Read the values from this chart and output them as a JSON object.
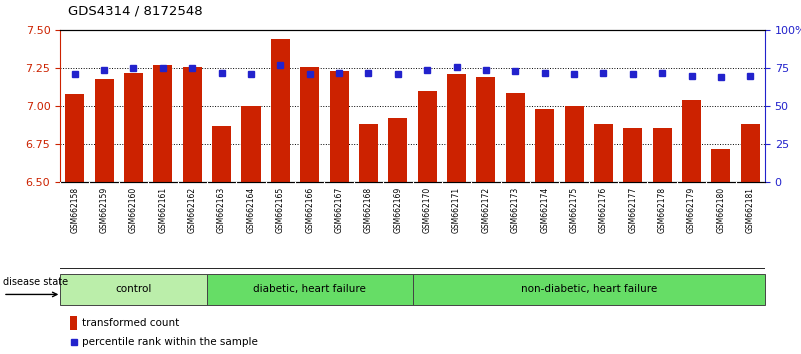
{
  "title": "GDS4314 / 8172548",
  "samples": [
    "GSM662158",
    "GSM662159",
    "GSM662160",
    "GSM662161",
    "GSM662162",
    "GSM662163",
    "GSM662164",
    "GSM662165",
    "GSM662166",
    "GSM662167",
    "GSM662168",
    "GSM662169",
    "GSM662170",
    "GSM662171",
    "GSM662172",
    "GSM662173",
    "GSM662174",
    "GSM662175",
    "GSM662176",
    "GSM662177",
    "GSM662178",
    "GSM662179",
    "GSM662180",
    "GSM662181"
  ],
  "bar_values": [
    7.08,
    7.18,
    7.22,
    7.27,
    7.26,
    6.87,
    7.0,
    7.44,
    7.26,
    7.23,
    6.88,
    6.92,
    7.1,
    7.21,
    7.19,
    7.09,
    6.98,
    7.0,
    6.88,
    6.86,
    6.86,
    7.04,
    6.72,
    6.88
  ],
  "dot_values": [
    71,
    74,
    75,
    75,
    75,
    72,
    71,
    77,
    71,
    72,
    72,
    71,
    74,
    76,
    74,
    73,
    72,
    71,
    72,
    71,
    72,
    70,
    69,
    70
  ],
  "ylim_left": [
    6.5,
    7.5
  ],
  "ylim_right": [
    0,
    100
  ],
  "yticks_left": [
    6.5,
    6.75,
    7.0,
    7.25,
    7.5
  ],
  "yticks_right": [
    0,
    25,
    50,
    75,
    100
  ],
  "ytick_labels_right": [
    "0",
    "25",
    "50",
    "75",
    "100%"
  ],
  "bar_color": "#cc2200",
  "dot_color": "#2222cc",
  "group_boundaries": [
    0,
    5,
    12,
    24
  ],
  "group_labels": [
    "control",
    "diabetic, heart failure",
    "non-diabetic, heart failure"
  ],
  "group_colors": [
    "#bbeeaa",
    "#66dd66",
    "#66dd66"
  ],
  "legend_bar_label": "transformed count",
  "legend_dot_label": "percentile rank within the sample",
  "disease_state_label": "disease state",
  "bar_width": 0.65,
  "xtick_bg_color": "#cccccc",
  "gridline_color": "#000000",
  "gridline_ticks": [
    6.75,
    7.0,
    7.25
  ]
}
